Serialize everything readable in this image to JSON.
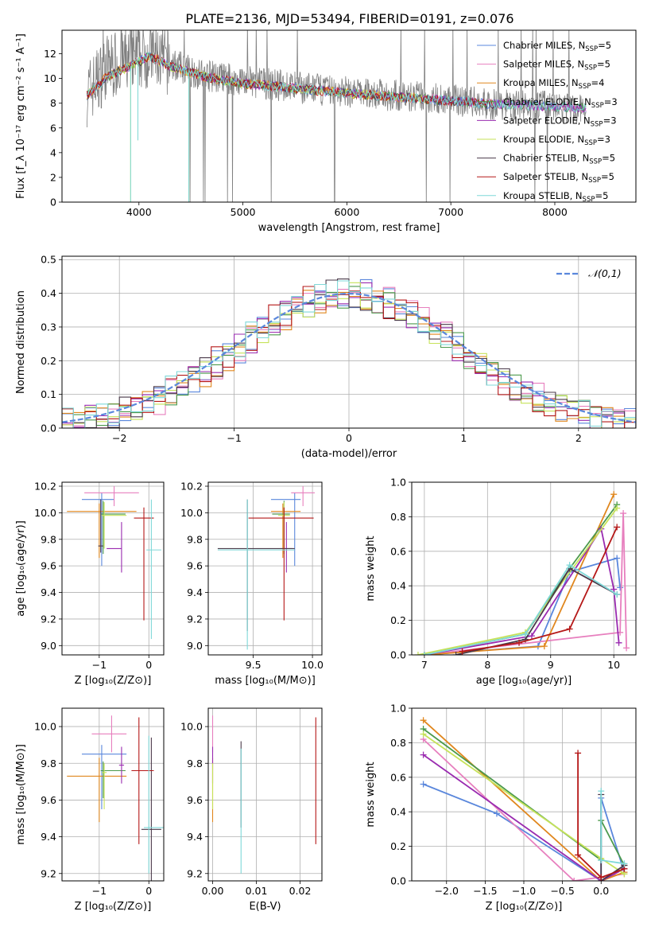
{
  "figure_title": "PLATE=2136, MJD=53494, FIBERID=0191, z=0.076",
  "models": [
    {
      "name": "Chabrier MILES, N",
      "sub": "SSP",
      "suffix": "=5",
      "color": "#5a87dc"
    },
    {
      "name": "Salpeter MILES, N",
      "sub": "SSP",
      "suffix": "=5",
      "color": "#e77fbe"
    },
    {
      "name": "Kroupa MILES, N",
      "sub": "SSP",
      "suffix": "=4",
      "color": "#e0871e"
    },
    {
      "name": "Chabrier ELODIE, N",
      "sub": "SSP",
      "suffix": "=3",
      "color": "#4c9a4c"
    },
    {
      "name": "Salpeter ELODIE, N",
      "sub": "SSP",
      "suffix": "=3",
      "color": "#9a2bb0"
    },
    {
      "name": "Kroupa ELODIE, N",
      "sub": "SSP",
      "suffix": "=3",
      "color": "#c6e25a"
    },
    {
      "name": "Chabrier STELIB, N",
      "sub": "SSP",
      "suffix": "=5",
      "color": "#4a3a4a"
    },
    {
      "name": "Salpeter STELIB, N",
      "sub": "SSP",
      "suffix": "=5",
      "color": "#b51818"
    },
    {
      "name": "Kroupa STELIB, N",
      "sub": "SSP",
      "suffix": "=5",
      "color": "#7fd8d8"
    }
  ],
  "chart_data": [
    {
      "id": "spectrum",
      "type": "line",
      "xlabel": "wavelength [Angstrom, rest frame]",
      "ylabel": "Flux [f_λ 10⁻¹⁷ erg cm⁻² s⁻¹ A⁻¹]",
      "xlim": [
        3260,
        8780
      ],
      "ylim": [
        0,
        13.9
      ],
      "xticks": [
        4000,
        5000,
        6000,
        7000,
        8000
      ],
      "yticks": [
        0,
        2,
        4,
        6,
        8,
        10,
        12
      ],
      "data_color": "#808080",
      "data_profile": {
        "x": [
          3500,
          3700,
          3900,
          4100,
          4300,
          4600,
          5000,
          5500,
          6000,
          6500,
          7000,
          7400,
          7800,
          8300
        ],
        "y": [
          8.8,
          11.0,
          11.5,
          12.0,
          11.2,
          10.3,
          9.8,
          9.3,
          8.9,
          8.6,
          8.3,
          7.9,
          7.8,
          7.5
        ]
      },
      "model_profile": {
        "x": [
          3500,
          3700,
          3900,
          4100,
          4300,
          4600,
          5000,
          5500,
          6000,
          6500,
          7000,
          7400,
          7800,
          8300
        ],
        "y": [
          8.6,
          10.2,
          10.9,
          11.8,
          11.0,
          10.2,
          9.6,
          9.2,
          8.8,
          8.5,
          8.2,
          7.9,
          7.8,
          7.6
        ]
      },
      "grid": false,
      "legend": "upper right"
    },
    {
      "id": "residuals",
      "type": "histogram",
      "xlabel": "(data-model)/error",
      "ylabel": "Normed distribution",
      "xlim": [
        -2.5,
        2.5
      ],
      "ylim": [
        0,
        0.51
      ],
      "xticks": [
        -2,
        -1,
        0,
        1,
        2
      ],
      "yticks": [
        0.0,
        0.1,
        0.2,
        0.3,
        0.4,
        0.5
      ],
      "bin_width": 0.1,
      "reference": {
        "name": "𝒩(0,1)",
        "color": "#5a87dc",
        "style": "dashed"
      },
      "grid": true,
      "legend": "upper right"
    },
    {
      "id": "age_vs_z",
      "type": "errorbar",
      "xlabel": "Z [log₁₀(Z/Z⊙)]",
      "ylabel": "age  [log₁₀(age/yr)]",
      "xlim": [
        -1.75,
        0.3
      ],
      "ylim": [
        8.93,
        10.23
      ],
      "xticks": [
        -1,
        0
      ],
      "yticks": [
        9.0,
        9.2,
        9.4,
        9.6,
        9.8,
        10.0,
        10.2
      ],
      "points": [
        {
          "model": 0,
          "x": -0.95,
          "xerr": [
            0.4,
            0.25
          ],
          "y": 10.1,
          "yerr": [
            0.5,
            0.05
          ]
        },
        {
          "model": 1,
          "x": -0.7,
          "xerr": [
            0.6,
            0.5
          ],
          "y": 10.15,
          "yerr": [
            0.1,
            0.05
          ]
        },
        {
          "model": 2,
          "x": -1.0,
          "xerr": [
            0.65,
            0.75
          ],
          "y": 10.01,
          "yerr": [
            0.35,
            0.06
          ]
        },
        {
          "model": 3,
          "x": -0.92,
          "xerr": [
            0.05,
            0.45
          ],
          "y": 9.99,
          "yerr": [
            0.3,
            0.1
          ]
        },
        {
          "model": 4,
          "x": -0.55,
          "xerr": [
            0.3,
            0.0
          ],
          "y": 9.73,
          "yerr": [
            0.18,
            0.2
          ]
        },
        {
          "model": 5,
          "x": -0.9,
          "xerr": [
            0.05,
            0.45
          ],
          "y": 9.98,
          "yerr": [
            0.25,
            0.1
          ]
        },
        {
          "model": 6,
          "x": -0.97,
          "xerr": [
            0.05,
            0.05
          ],
          "y": 9.75,
          "yerr": [
            0.05,
            0.35
          ]
        },
        {
          "model": 7,
          "x": -0.1,
          "xerr": [
            0.2,
            0.2
          ],
          "y": 9.96,
          "yerr": [
            0.77,
            0.08
          ]
        },
        {
          "model": 8,
          "x": 0.05,
          "xerr": [
            0.1,
            0.2
          ],
          "y": 9.72,
          "yerr": [
            0.67,
            0.38
          ]
        }
      ],
      "grid": true
    },
    {
      "id": "age_vs_mass",
      "type": "errorbar",
      "xlabel": "mass [log₁₀(M/M⊙)]",
      "ylabel": "",
      "xlim": [
        9.12,
        10.08
      ],
      "ylim": [
        8.93,
        10.23
      ],
      "xticks": [
        9.5,
        10.0
      ],
      "yticks": [
        9.0,
        9.2,
        9.4,
        9.6,
        9.8,
        10.0,
        10.2
      ],
      "points": [
        {
          "model": 0,
          "x": 9.85,
          "xerr": [
            0.2,
            0.05
          ],
          "y": 10.1,
          "yerr": [
            0.5,
            0.05
          ]
        },
        {
          "model": 1,
          "x": 9.92,
          "xerr": [
            0.1,
            0.1
          ],
          "y": 10.15,
          "yerr": [
            0.1,
            0.05
          ]
        },
        {
          "model": 2,
          "x": 9.75,
          "xerr": [
            0.1,
            0.15
          ],
          "y": 10.01,
          "yerr": [
            0.35,
            0.06
          ]
        },
        {
          "model": 3,
          "x": 9.76,
          "xerr": [
            0.1,
            0.05
          ],
          "y": 9.99,
          "yerr": [
            0.3,
            0.1
          ]
        },
        {
          "model": 4,
          "x": 9.78,
          "xerr": [
            0.05,
            0.05
          ],
          "y": 9.73,
          "yerr": [
            0.18,
            0.2
          ]
        },
        {
          "model": 5,
          "x": 9.76,
          "xerr": [
            0.05,
            0.05
          ],
          "y": 9.98,
          "yerr": [
            0.25,
            0.1
          ]
        },
        {
          "model": 6,
          "x": 9.45,
          "xerr": [
            0.25,
            0.4
          ],
          "y": 9.73,
          "yerr": [
            0.62,
            0.37
          ]
        },
        {
          "model": 7,
          "x": 9.76,
          "xerr": [
            0.3,
            0.25
          ],
          "y": 9.96,
          "yerr": [
            0.77,
            0.08
          ]
        },
        {
          "model": 8,
          "x": 9.45,
          "xerr": [
            0.25,
            0.4
          ],
          "y": 9.72,
          "yerr": [
            0.75,
            0.38
          ]
        }
      ],
      "grid": true
    },
    {
      "id": "weight_vs_age",
      "type": "line",
      "xlabel": "age  [log₁₀(age/yr)]",
      "ylabel": "mass weight",
      "xlim": [
        6.8,
        10.35
      ],
      "ylim": [
        0,
        1.0
      ],
      "xticks": [
        7,
        8,
        9,
        10
      ],
      "yticks": [
        0.0,
        0.2,
        0.4,
        0.6,
        0.8,
        1.0
      ],
      "series": [
        {
          "model": 0,
          "x": [
            7.0,
            8.8,
            9.3,
            10.05,
            10.1
          ],
          "y": [
            0.0,
            0.05,
            0.48,
            0.56,
            0.39
          ]
        },
        {
          "model": 1,
          "x": [
            7.0,
            10.1,
            10.15,
            10.2
          ],
          "y": [
            0.0,
            0.13,
            0.82,
            0.04
          ]
        },
        {
          "model": 2,
          "x": [
            7.0,
            8.9,
            10.0
          ],
          "y": [
            0.0,
            0.05,
            0.93
          ]
        },
        {
          "model": 3,
          "x": [
            7.0,
            8.6,
            9.3,
            10.05
          ],
          "y": [
            0.0,
            0.12,
            0.5,
            0.87
          ]
        },
        {
          "model": 4,
          "x": [
            7.0,
            8.7,
            9.8,
            10.0,
            10.08
          ],
          "y": [
            0.0,
            0.11,
            0.73,
            0.38,
            0.07
          ]
        },
        {
          "model": 5,
          "x": [
            6.9,
            8.6,
            10.05
          ],
          "y": [
            0.0,
            0.13,
            0.85
          ]
        },
        {
          "model": 6,
          "x": [
            7.5,
            8.6,
            9.3,
            10.05
          ],
          "y": [
            0.0,
            0.09,
            0.5,
            0.35
          ]
        },
        {
          "model": 7,
          "x": [
            7.6,
            8.5,
            9.3,
            10.05
          ],
          "y": [
            0.02,
            0.07,
            0.15,
            0.74
          ]
        },
        {
          "model": 8,
          "x": [
            7.0,
            8.6,
            9.3,
            10.05
          ],
          "y": [
            0.0,
            0.12,
            0.52,
            0.35
          ]
        }
      ],
      "grid": true
    },
    {
      "id": "mass_vs_z",
      "type": "errorbar",
      "xlabel": "Z [log₁₀(Z/Z⊙)]",
      "ylabel": "mass [log₁₀(M/M⊙)]",
      "xlim": [
        -1.75,
        0.3
      ],
      "ylim": [
        9.16,
        10.1
      ],
      "xticks": [
        -1,
        0
      ],
      "yticks": [
        9.2,
        9.4,
        9.6,
        9.8,
        10.0
      ],
      "points": [
        {
          "model": 0,
          "x": -0.95,
          "xerr": [
            0.4,
            0.5
          ],
          "y": 9.85,
          "yerr": [
            0.3,
            0.05
          ]
        },
        {
          "model": 1,
          "x": -0.75,
          "xerr": [
            0.4,
            0.3
          ],
          "y": 9.96,
          "yerr": [
            0.1,
            0.1
          ]
        },
        {
          "model": 2,
          "x": -1.0,
          "xerr": [
            0.65,
            0.55
          ],
          "y": 9.73,
          "yerr": [
            0.25,
            0.1
          ]
        },
        {
          "model": 3,
          "x": -0.92,
          "xerr": [
            0.05,
            0.45
          ],
          "y": 9.76,
          "yerr": [
            0.15,
            0.05
          ]
        },
        {
          "model": 4,
          "x": -0.55,
          "xerr": [
            0.05,
            0.05
          ],
          "y": 9.79,
          "yerr": [
            0.1,
            0.1
          ]
        },
        {
          "model": 5,
          "x": -0.9,
          "xerr": [
            0.05,
            0.05
          ],
          "y": 9.75,
          "yerr": [
            0.2,
            0.05
          ]
        },
        {
          "model": 6,
          "x": 0.05,
          "xerr": [
            0.2,
            0.2
          ],
          "y": 9.44,
          "yerr": [
            0.3,
            0.5
          ]
        },
        {
          "model": 7,
          "x": -0.2,
          "xerr": [
            0.15,
            0.3
          ],
          "y": 9.76,
          "yerr": [
            0.4,
            0.29
          ]
        },
        {
          "model": 8,
          "x": 0.0,
          "xerr": [
            0.1,
            0.3
          ],
          "y": 9.45,
          "yerr": [
            0.25,
            0.5
          ]
        }
      ],
      "grid": true
    },
    {
      "id": "mass_vs_ebv",
      "type": "errorbar",
      "xlabel": "E(B-V)",
      "ylabel": "",
      "xlim": [
        -0.001,
        0.025
      ],
      "ylim": [
        9.16,
        10.1
      ],
      "xticks": [
        0.0,
        0.01,
        0.02
      ],
      "xticklabels": [
        "0.00",
        "0.01",
        "0.02"
      ],
      "yticks": [
        9.2,
        9.4,
        9.6,
        9.8,
        10.0
      ],
      "points": [
        {
          "model": 1,
          "x": 0.0,
          "y": 9.96,
          "yerr": [
            0.1,
            0.1
          ]
        },
        {
          "model": 2,
          "x": 0.0,
          "y": 9.73,
          "yerr": [
            0.25,
            0.1
          ]
        },
        {
          "model": 4,
          "x": 0.0,
          "y": 9.79,
          "yerr": [
            0.1,
            0.1
          ]
        },
        {
          "model": 5,
          "x": 0.0,
          "y": 9.75,
          "yerr": [
            0.2,
            0.05
          ]
        },
        {
          "model": 6,
          "x": 0.0065,
          "y": 9.75,
          "yerr": [
            0.3,
            0.17
          ]
        },
        {
          "model": 8,
          "x": 0.0065,
          "y": 9.7,
          "yerr": [
            0.5,
            0.18
          ]
        },
        {
          "model": 7,
          "x": 0.0236,
          "y": 9.7,
          "yerr": [
            0.34,
            0.35
          ]
        }
      ],
      "grid": true
    },
    {
      "id": "weight_vs_z",
      "type": "line",
      "xlabel": "Z [log₁₀(Z/Z⊙)]",
      "ylabel": "mass weight",
      "xlim": [
        -2.45,
        0.45
      ],
      "ylim": [
        0,
        1.0
      ],
      "xticks": [
        -2.0,
        -1.5,
        -1.0,
        -0.5,
        0.0
      ],
      "xticklabels": [
        "−2.0",
        "−1.5",
        "−1.0",
        "−0.5",
        "0.0"
      ],
      "yticks": [
        0.0,
        0.2,
        0.4,
        0.6,
        0.8,
        1.0
      ],
      "series": [
        {
          "model": 0,
          "x": [
            -2.3,
            -1.35,
            0.0,
            0.0,
            0.3
          ],
          "y": [
            0.56,
            0.39,
            0.0,
            0.48,
            0.05
          ]
        },
        {
          "model": 1,
          "x": [
            -2.3,
            -0.35,
            0.3
          ],
          "y": [
            0.82,
            0.0,
            0.04
          ]
        },
        {
          "model": 2,
          "x": [
            -2.3,
            0.0,
            0.3
          ],
          "y": [
            0.93,
            0.0,
            0.05
          ]
        },
        {
          "model": 3,
          "x": [
            -2.3,
            0.0,
            0.0,
            0.3
          ],
          "y": [
            0.88,
            0.12,
            0.35,
            0.09
          ]
        },
        {
          "model": 4,
          "x": [
            -2.3,
            0.0,
            0.3
          ],
          "y": [
            0.73,
            0.0,
            0.07
          ]
        },
        {
          "model": 5,
          "x": [
            -2.3,
            0.0,
            0.3
          ],
          "y": [
            0.85,
            0.13,
            0.04
          ]
        },
        {
          "model": 6,
          "x": [
            0.0,
            0.0,
            0.3
          ],
          "y": [
            0.5,
            0.0,
            0.09
          ]
        },
        {
          "model": 7,
          "x": [
            -0.3,
            -0.3,
            0.0,
            0.3
          ],
          "y": [
            0.74,
            0.15,
            0.02,
            0.07
          ]
        },
        {
          "model": 8,
          "x": [
            0.0,
            0.0,
            0.3
          ],
          "y": [
            0.52,
            0.12,
            0.1
          ]
        }
      ],
      "grid": true
    }
  ]
}
